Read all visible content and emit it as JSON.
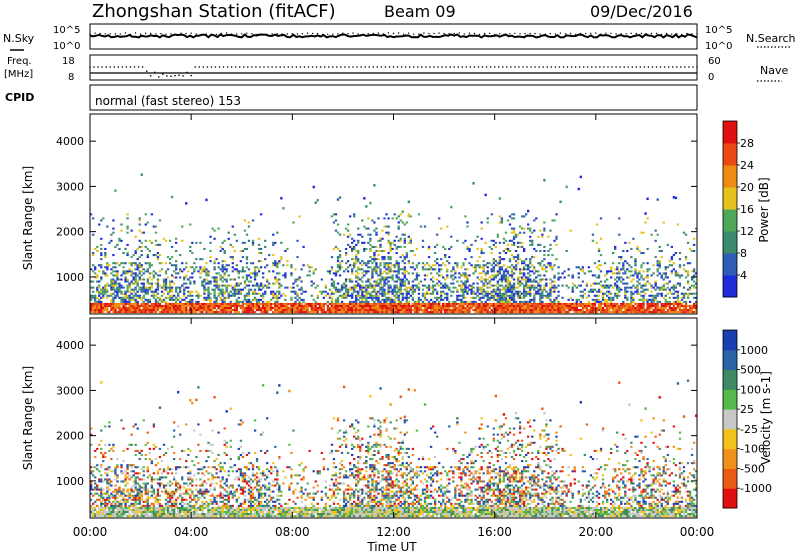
{
  "header": {
    "station": "Zhongshan Station (fitACF)",
    "beam": "Beam 09",
    "date": "09/Dec/2016"
  },
  "nsky_panel": {
    "left_label": "N.Sky",
    "right_label": "N.Search",
    "left_ticks": [
      "10^5",
      "10^0"
    ],
    "right_ticks": [
      "10^5",
      "10^0"
    ]
  },
  "freq_panel": {
    "left_label_1": "Freq.",
    "left_label_2": "[MHz]",
    "right_label": "Nave",
    "left_ticks": [
      "18",
      "8"
    ],
    "right_ticks": [
      "60",
      "0"
    ]
  },
  "cpid_panel": {
    "label": "CPID",
    "text": "normal (fast stereo) 153"
  },
  "x_axis": {
    "label": "Time UT",
    "ticks": [
      "00:00",
      "04:00",
      "08:00",
      "12:00",
      "16:00",
      "20:00",
      "00:00"
    ]
  },
  "chart_data": [
    {
      "type": "heatmap",
      "title": "",
      "xlabel": "Time UT",
      "ylabel": "Slant Range [km]",
      "xlim": [
        0,
        24
      ],
      "ylim": [
        180,
        4600
      ],
      "yticks": [
        1000,
        2000,
        3000,
        4000
      ],
      "colorbar": {
        "label": "Power [dB]",
        "ticks": [
          4,
          8,
          12,
          16,
          20,
          24,
          28
        ],
        "range": [
          0,
          30
        ],
        "colors": [
          "#1f2bd9",
          "#2f5db5",
          "#3b8a6e",
          "#4fa85a",
          "#e6c21c",
          "#f08a12",
          "#e84a12",
          "#e01010"
        ]
      }
    },
    {
      "type": "heatmap",
      "title": "",
      "xlabel": "Time UT",
      "ylabel": "Slant Range [km]",
      "xlim": [
        0,
        24
      ],
      "ylim": [
        180,
        4600
      ],
      "yticks": [
        1000,
        2000,
        3000,
        4000
      ],
      "colorbar": {
        "label": "Velocity [m s-1]",
        "ticks": [
          1000,
          500,
          100,
          25,
          -25,
          -100,
          -500,
          -1000
        ],
        "colors": [
          "#1a3fb0",
          "#2b62a8",
          "#3e8a64",
          "#55b84a",
          "#c8c8c8",
          "#f2c21a",
          "#f0901a",
          "#ea5a14",
          "#e01010"
        ]
      }
    }
  ]
}
